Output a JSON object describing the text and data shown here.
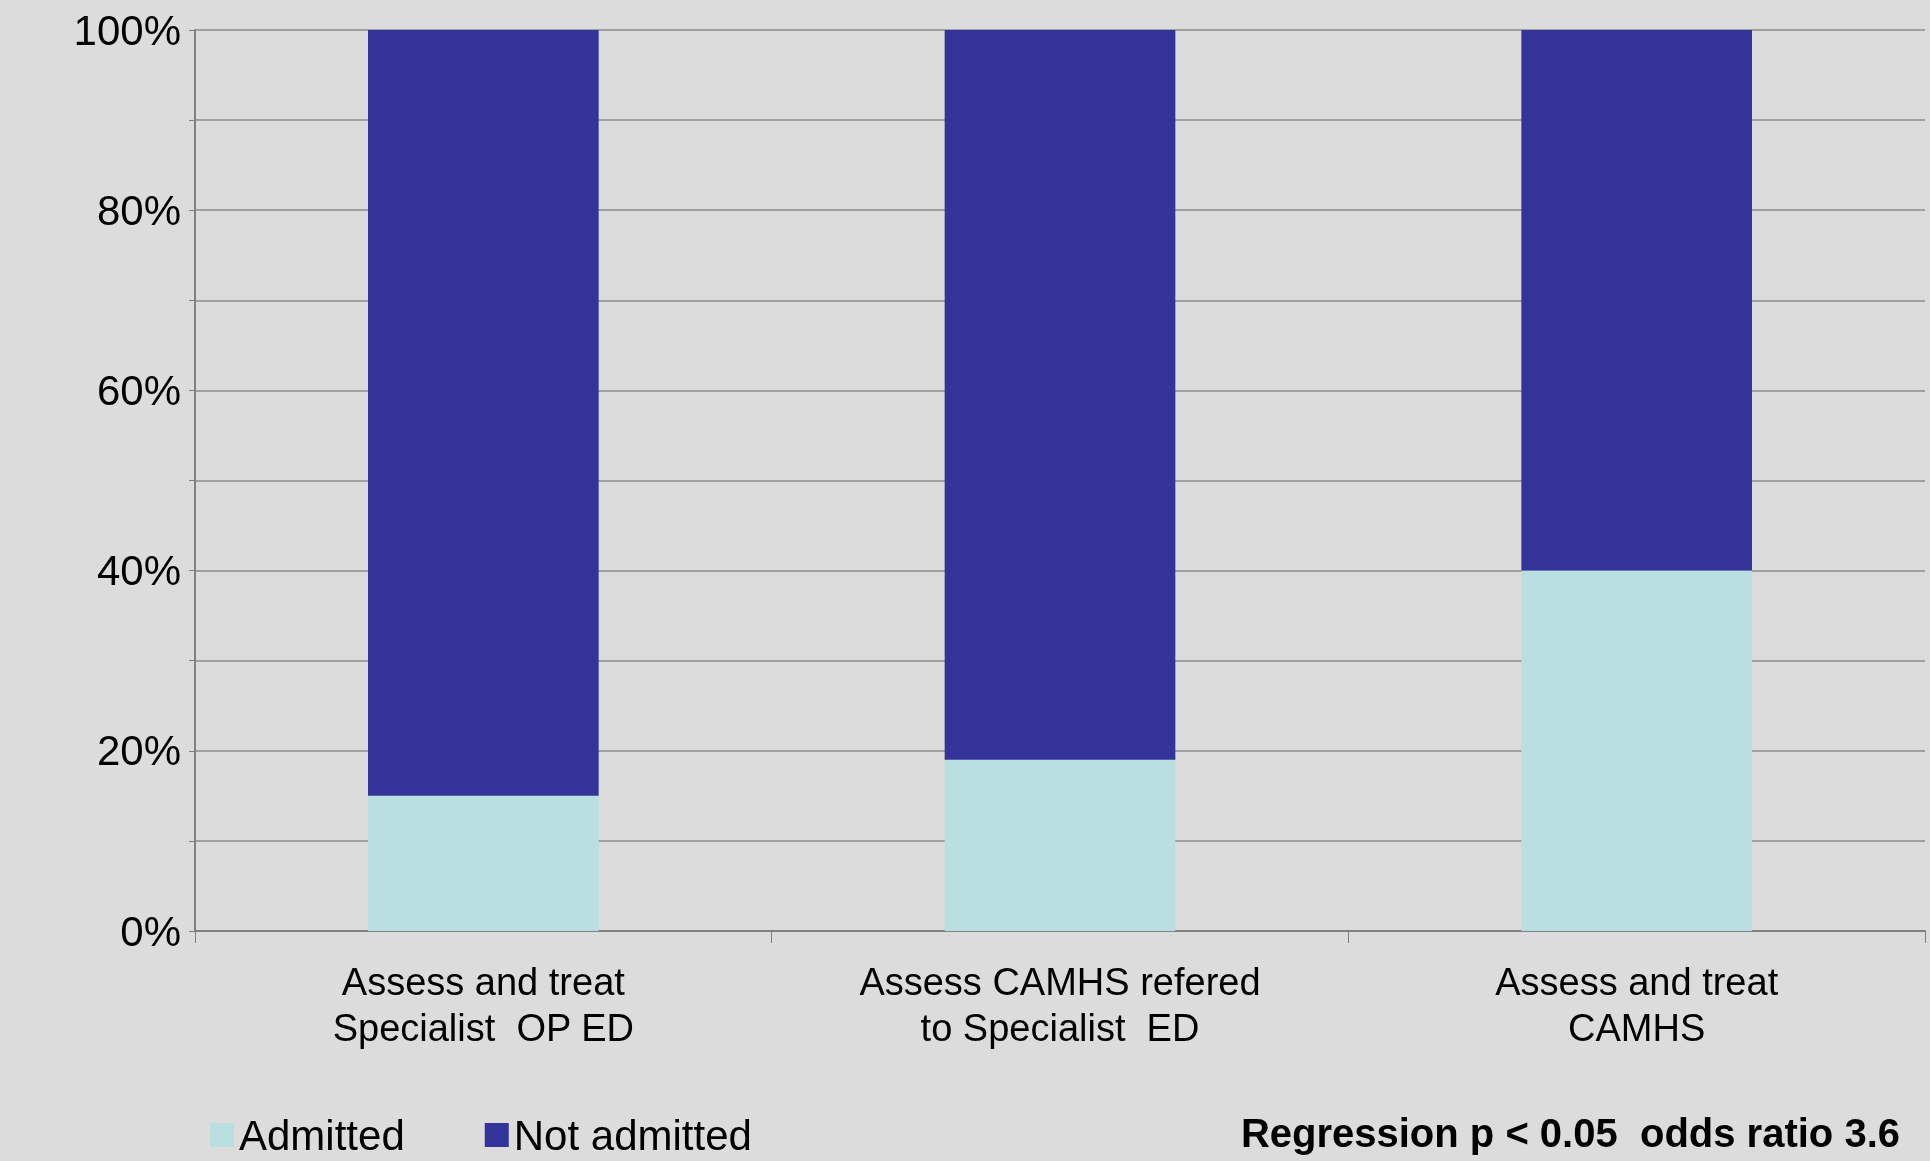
{
  "chart_data": {
    "type": "bar",
    "stacked": true,
    "categories": [
      "Assess and treat\nSpecialist  OP ED",
      "Assess CAMHS refered\nto Specialist  ED",
      "Assess and treat\nCAMHS"
    ],
    "series": [
      {
        "name": "Admitted",
        "color": "#b9dfe1",
        "values": [
          15,
          19,
          40
        ]
      },
      {
        "name": "Not admitted",
        "color": "#333399",
        "values": [
          85,
          81,
          60
        ]
      }
    ],
    "ylim": [
      0,
      100
    ],
    "yticks": [
      {
        "value": 0,
        "label": "0%"
      },
      {
        "value": 10,
        "label": null
      },
      {
        "value": 20,
        "label": "20%"
      },
      {
        "value": 30,
        "label": null
      },
      {
        "value": 40,
        "label": "40%"
      },
      {
        "value": 50,
        "label": null
      },
      {
        "value": 60,
        "label": "60%"
      },
      {
        "value": 70,
        "label": null
      },
      {
        "value": 80,
        "label": "80%"
      },
      {
        "value": 90,
        "label": null
      },
      {
        "value": 100,
        "label": "100%"
      }
    ],
    "grid": "y",
    "legend": "bottom left",
    "annotations": [
      "Regression p < 0.05  odds ratio 3.6"
    ]
  }
}
